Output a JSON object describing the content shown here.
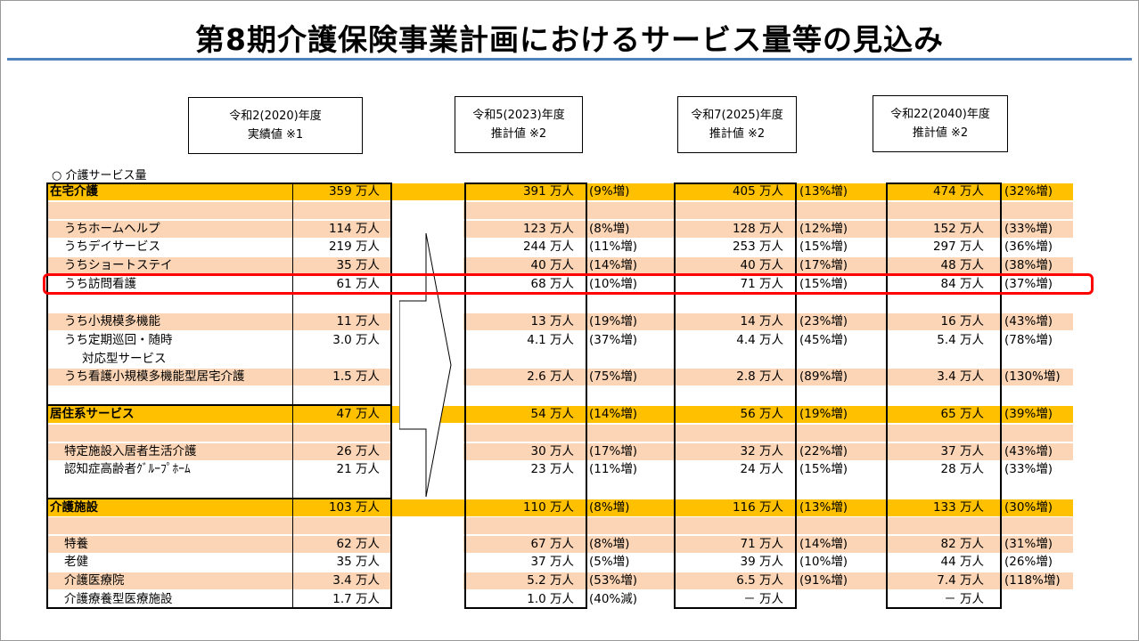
{
  "title": "第8期介護保険事業計画におけるサービス量等の見込み",
  "headers": [
    {
      "line1": "令和2(2020)年度",
      "line2": "実績値 ※1"
    },
    {
      "line1": "令和5(2023)年度",
      "line2": "推計値 ※2"
    },
    {
      "line1": "令和7(2025)年度",
      "line2": "推計値 ※2"
    },
    {
      "line1": "令和22(2040)年度",
      "line2": "推計値 ※2"
    }
  ],
  "section_label": "○ 介護サービス量",
  "rows": {
    "zaitaku": {
      "label": "在宅介護",
      "v0": "359 万人",
      "v1": "391 万人",
      "p1": "(9%増)",
      "v2": "405 万人",
      "p2": "(13%増)",
      "v3": "474 万人",
      "p3": "(32%増)"
    },
    "homehelp": {
      "label": "うちホームヘルプ",
      "v0": "114 万人",
      "v1": "123 万人",
      "p1": "(8%増)",
      "v2": "128 万人",
      "p2": "(12%増)",
      "v3": "152 万人",
      "p3": "(33%増)"
    },
    "day": {
      "label": "うちデイサービス",
      "v0": "219 万人",
      "v1": "244 万人",
      "p1": "(11%増)",
      "v2": "253 万人",
      "p2": "(15%増)",
      "v3": "297 万人",
      "p3": "(36%増)"
    },
    "short": {
      "label": "うちショートステイ",
      "v0": "35 万人",
      "v1": "40 万人",
      "p1": "(14%増)",
      "v2": "40 万人",
      "p2": "(17%増)",
      "v3": "48 万人",
      "p3": "(38%増)"
    },
    "houmon": {
      "label": "うち訪問看護",
      "v0": "61 万人",
      "v1": "68 万人",
      "p1": "(10%増)",
      "v2": "71 万人",
      "p2": "(15%増)",
      "v3": "84 万人",
      "p3": "(37%増)"
    },
    "shokibo": {
      "label": "うち小規模多機能",
      "v0": "11 万人",
      "v1": "13 万人",
      "p1": "(19%増)",
      "v2": "14 万人",
      "p2": "(23%増)",
      "v3": "16 万人",
      "p3": "(43%増)"
    },
    "teiki": {
      "label": "うち定期巡回・随時",
      "label2": "対応型サービス",
      "v0": "3.0 万人",
      "v1": "4.1 万人",
      "p1": "(37%増)",
      "v2": "4.4 万人",
      "p2": "(45%増)",
      "v3": "5.4 万人",
      "p3": "(78%増)"
    },
    "kango_shokibo": {
      "label": "うち看護小規模多機能型居宅介護",
      "v0": "1.5 万人",
      "v1": "2.6 万人",
      "p1": "(75%増)",
      "v2": "2.8 万人",
      "p2": "(89%増)",
      "v3": "3.4 万人",
      "p3": "(130%増)"
    },
    "kyoju": {
      "label": "居住系サービス",
      "v0": "47 万人",
      "v1": "54 万人",
      "p1": "(14%増)",
      "v2": "56 万人",
      "p2": "(19%増)",
      "v3": "65 万人",
      "p3": "(39%増)"
    },
    "tokutei": {
      "label": "特定施設入居者生活介護",
      "v0": "26 万人",
      "v1": "30 万人",
      "p1": "(17%増)",
      "v2": "32 万人",
      "p2": "(22%増)",
      "v3": "37 万人",
      "p3": "(43%増)"
    },
    "group": {
      "label": "認知症高齢者ｸﾞﾙｰﾌﾟﾎｰﾑ",
      "v0": "21 万人",
      "v1": "23 万人",
      "p1": "(11%増)",
      "v2": "24 万人",
      "p2": "(15%増)",
      "v3": "28 万人",
      "p3": "(33%増)"
    },
    "shisetsu": {
      "label": "介護施設",
      "v0": "103 万人",
      "v1": "110 万人",
      "p1": "(8%増)",
      "v2": "116 万人",
      "p2": "(13%増)",
      "v3": "133 万人",
      "p3": "(30%増)"
    },
    "tokuyo": {
      "label": "特養",
      "v0": "62 万人",
      "v1": "67 万人",
      "p1": "(8%増)",
      "v2": "71 万人",
      "p2": "(14%増)",
      "v3": "82 万人",
      "p3": "(31%増)"
    },
    "roken": {
      "label": "老健",
      "v0": "35 万人",
      "v1": "37 万人",
      "p1": "(5%増)",
      "v2": "39 万人",
      "p2": "(10%増)",
      "v3": "44 万人",
      "p3": "(26%増)"
    },
    "iryoin": {
      "label": "介護医療院",
      "v0": "3.4 万人",
      "v1": "5.2 万人",
      "p1": "(53%増)",
      "v2": "6.5 万人",
      "p2": "(91%増)",
      "v3": "7.4 万人",
      "p3": "(118%増)"
    },
    "ryoyo": {
      "label": "介護療養型医療施設",
      "v0": "1.7 万人",
      "v1": "1.0 万人",
      "p1": "(40%減)",
      "v2": "－ 万人",
      "p2": "",
      "v3": "－ 万人",
      "p3": ""
    }
  }
}
